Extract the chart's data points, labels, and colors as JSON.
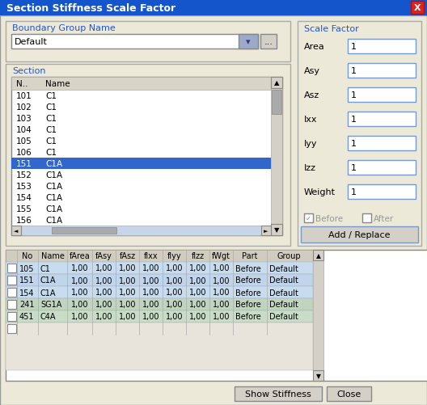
{
  "title": "Section Stiffness Scale Factor",
  "title_bar_color": "#1555CC",
  "title_text_color": "#FFFFFF",
  "bg_color": "#D4D0C8",
  "panel_bg": "#ECE9D8",
  "white": "#FFFFFF",
  "blue_highlight": "#3366CC",
  "group_label_color": "#2255CC",
  "boundary_label": "Boundary Group Name",
  "default_text": "Default",
  "section_label": "Section",
  "scale_factor_label": "Scale Factor",
  "section_list_header": [
    "N..",
    "Name"
  ],
  "section_list_items": [
    [
      "101",
      "C1"
    ],
    [
      "102",
      "C1"
    ],
    [
      "103",
      "C1"
    ],
    [
      "104",
      "C1"
    ],
    [
      "105",
      "C1"
    ],
    [
      "106",
      "C1"
    ],
    [
      "151",
      "C1A"
    ],
    [
      "152",
      "C1A"
    ],
    [
      "153",
      "C1A"
    ],
    [
      "154",
      "C1A"
    ],
    [
      "155",
      "C1A"
    ],
    [
      "156",
      "C1A"
    ]
  ],
  "selected_row": 6,
  "scale_fields": [
    "Area",
    "Asy",
    "Asz",
    "Ixx",
    "Iyy",
    "Izz",
    "Weight"
  ],
  "scale_values": [
    "1",
    "1",
    "1",
    "1",
    "1",
    "1",
    "1"
  ],
  "before_checked": true,
  "after_checked": false,
  "table_headers": [
    "No",
    "Name",
    "fArea",
    "fAsy",
    "fAsz",
    "flxx",
    "flyy",
    "flzz",
    "fWgt",
    "Part",
    "Group"
  ],
  "table_rows": [
    [
      "105",
      "C1",
      "1,00",
      "1,00",
      "1,00",
      "1,00",
      "1,00",
      "1,00",
      "1,00",
      "Before",
      "Default"
    ],
    [
      "151",
      "C1A",
      "1,00",
      "1,00",
      "1,00",
      "1,00",
      "1,00",
      "1,00",
      "1,00",
      "Before",
      "Default"
    ],
    [
      "154",
      "C1A",
      "1,00",
      "1,00",
      "1,00",
      "1,00",
      "1,00",
      "1,00",
      "1,00",
      "Before",
      "Default"
    ],
    [
      "241",
      "SG1A",
      "1,00",
      "1,00",
      "1,00",
      "1,00",
      "1,00",
      "1,00",
      "1,00",
      "Before",
      "Default"
    ],
    [
      "451",
      "C4A",
      "1,00",
      "1,00",
      "1,00",
      "1,00",
      "1,00",
      "1,00",
      "1,00",
      "Before",
      "Default"
    ]
  ],
  "table_row_colors": [
    "#C8DCF0",
    "#C0D4EC",
    "#C8DCF0",
    "#C0D4C0",
    "#C8DCC8"
  ],
  "btn_show": "Show Stiffness",
  "btn_close": "Close",
  "btn_add": "Add / Replace"
}
